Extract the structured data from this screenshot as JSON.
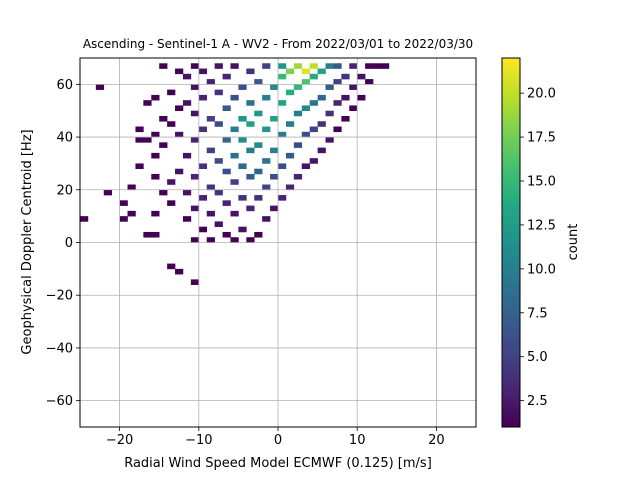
{
  "chart_data": {
    "type": "heatmap",
    "title": "Ascending - Sentinel-1 A - WV2 - From 2022/03/01 to 2022/03/30",
    "xlabel": "Radial Wind Speed Model ECMWF (0.125) [m/s]",
    "ylabel": "Geophysical Doppler Centroid [Hz]",
    "xlim": [
      -25,
      25
    ],
    "ylim": [
      -70,
      70
    ],
    "xticks": [
      -20,
      -10,
      0,
      10,
      20
    ],
    "xtick_labels": [
      "−20",
      "−10",
      "0",
      "10",
      "20"
    ],
    "yticks": [
      -60,
      -40,
      -20,
      0,
      20,
      40,
      60
    ],
    "ytick_labels": [
      "−60",
      "−40",
      "−20",
      "0",
      "20",
      "40",
      "60"
    ],
    "grid": true,
    "bin_width_x": 1.0,
    "bin_height_y": 2.0,
    "colorbar": {
      "label": "count",
      "range": [
        1,
        22
      ],
      "ticks": [
        2.5,
        5.0,
        7.5,
        10.0,
        12.5,
        15.0,
        17.5,
        20.0
      ],
      "tick_labels": [
        "2.5",
        "5.0",
        "7.5",
        "10.0",
        "12.5",
        "15.0",
        "17.5",
        "20.0"
      ],
      "colormap": "viridis"
    },
    "cells": [
      [
        -24.5,
        9,
        1
      ],
      [
        -22.5,
        59,
        1
      ],
      [
        -21.5,
        19,
        1
      ],
      [
        -19.5,
        15,
        1
      ],
      [
        -19.5,
        9,
        1
      ],
      [
        -18.5,
        11,
        1
      ],
      [
        -18.5,
        21,
        1
      ],
      [
        -17.5,
        29,
        1
      ],
      [
        -17.5,
        39,
        1
      ],
      [
        -17.5,
        43,
        1
      ],
      [
        -16.5,
        3,
        1
      ],
      [
        -16.5,
        39,
        1
      ],
      [
        -16.5,
        53,
        1
      ],
      [
        -15.5,
        3,
        1
      ],
      [
        -15.5,
        11,
        1
      ],
      [
        -15.5,
        25,
        1
      ],
      [
        -15.5,
        33,
        1
      ],
      [
        -15.5,
        41,
        1
      ],
      [
        -15.5,
        55,
        1
      ],
      [
        -14.5,
        19,
        1
      ],
      [
        -14.5,
        37,
        1
      ],
      [
        -14.5,
        47,
        1
      ],
      [
        -14.5,
        67,
        1
      ],
      [
        -13.5,
        -9,
        1
      ],
      [
        -13.5,
        15,
        1
      ],
      [
        -13.5,
        23,
        2
      ],
      [
        -13.5,
        45,
        1
      ],
      [
        -13.5,
        57,
        1
      ],
      [
        -12.5,
        -11,
        1
      ],
      [
        -12.5,
        27,
        2
      ],
      [
        -12.5,
        41,
        2
      ],
      [
        -12.5,
        51,
        1
      ],
      [
        -12.5,
        65,
        1
      ],
      [
        -11.5,
        9,
        1
      ],
      [
        -11.5,
        19,
        2
      ],
      [
        -11.5,
        33,
        2
      ],
      [
        -11.5,
        53,
        2
      ],
      [
        -11.5,
        63,
        2
      ],
      [
        -10.5,
        -15,
        1
      ],
      [
        -10.5,
        1,
        1
      ],
      [
        -10.5,
        13,
        2
      ],
      [
        -10.5,
        25,
        3
      ],
      [
        -10.5,
        39,
        3
      ],
      [
        -10.5,
        49,
        2
      ],
      [
        -10.5,
        59,
        2
      ],
      [
        -10.5,
        67,
        1
      ],
      [
        -9.5,
        5,
        1
      ],
      [
        -9.5,
        17,
        3
      ],
      [
        -9.5,
        29,
        4
      ],
      [
        -9.5,
        43,
        4
      ],
      [
        -9.5,
        55,
        3
      ],
      [
        -9.5,
        65,
        2
      ],
      [
        -8.5,
        1,
        1
      ],
      [
        -8.5,
        11,
        2
      ],
      [
        -8.5,
        21,
        4
      ],
      [
        -8.5,
        35,
        5
      ],
      [
        -8.5,
        47,
        5
      ],
      [
        -8.5,
        61,
        3
      ],
      [
        -7.5,
        7,
        2
      ],
      [
        -7.5,
        19,
        4
      ],
      [
        -7.5,
        31,
        6
      ],
      [
        -7.5,
        45,
        6
      ],
      [
        -7.5,
        57,
        4
      ],
      [
        -7.5,
        67,
        2
      ],
      [
        -6.5,
        3,
        1
      ],
      [
        -6.5,
        15,
        3
      ],
      [
        -6.5,
        27,
        6
      ],
      [
        -6.5,
        39,
        8
      ],
      [
        -6.5,
        51,
        7
      ],
      [
        -6.5,
        63,
        3
      ],
      [
        -5.5,
        1,
        1
      ],
      [
        -5.5,
        11,
        2
      ],
      [
        -5.5,
        23,
        5
      ],
      [
        -5.5,
        33,
        9
      ],
      [
        -5.5,
        43,
        10
      ],
      [
        -5.5,
        55,
        6
      ],
      [
        -5.5,
        67,
        2
      ],
      [
        -4.5,
        5,
        2
      ],
      [
        -4.5,
        17,
        4
      ],
      [
        -4.5,
        29,
        8
      ],
      [
        -4.5,
        39,
        11
      ],
      [
        -4.5,
        47,
        12
      ],
      [
        -4.5,
        59,
        6
      ],
      [
        -3.5,
        1,
        1
      ],
      [
        -3.5,
        13,
        3
      ],
      [
        -3.5,
        25,
        7
      ],
      [
        -3.5,
        35,
        10
      ],
      [
        -3.5,
        45,
        13
      ],
      [
        -3.5,
        53,
        9
      ],
      [
        -3.5,
        65,
        4
      ],
      [
        -2.5,
        3,
        1
      ],
      [
        -2.5,
        17,
        4
      ],
      [
        -2.5,
        27,
        8
      ],
      [
        -2.5,
        37,
        11
      ],
      [
        -2.5,
        49,
        12
      ],
      [
        -2.5,
        61,
        7
      ],
      [
        -1.5,
        9,
        2
      ],
      [
        -1.5,
        21,
        5
      ],
      [
        -1.5,
        31,
        9
      ],
      [
        -1.5,
        43,
        12
      ],
      [
        -1.5,
        55,
        10
      ],
      [
        -1.5,
        67,
        5
      ],
      [
        -0.5,
        13,
        2
      ],
      [
        -0.5,
        25,
        6
      ],
      [
        -0.5,
        35,
        10
      ],
      [
        -0.5,
        47,
        13
      ],
      [
        -0.5,
        59,
        11
      ],
      [
        0.5,
        17,
        3
      ],
      [
        0.5,
        29,
        6
      ],
      [
        0.5,
        41,
        10
      ],
      [
        0.5,
        53,
        13
      ],
      [
        0.5,
        63,
        15
      ],
      [
        0.5,
        67,
        12
      ],
      [
        1.5,
        21,
        3
      ],
      [
        1.5,
        33,
        7
      ],
      [
        1.5,
        45,
        10
      ],
      [
        1.5,
        57,
        14
      ],
      [
        1.5,
        65,
        18
      ],
      [
        2.5,
        25,
        3
      ],
      [
        2.5,
        37,
        6
      ],
      [
        2.5,
        49,
        10
      ],
      [
        2.5,
        59,
        15
      ],
      [
        2.5,
        67,
        19
      ],
      [
        3.5,
        29,
        2
      ],
      [
        3.5,
        41,
        6
      ],
      [
        3.5,
        51,
        11
      ],
      [
        3.5,
        61,
        16
      ],
      [
        3.5,
        65,
        21
      ],
      [
        4.5,
        31,
        2
      ],
      [
        4.5,
        43,
        5
      ],
      [
        4.5,
        53,
        9
      ],
      [
        4.5,
        63,
        14
      ],
      [
        4.5,
        67,
        20
      ],
      [
        5.5,
        35,
        2
      ],
      [
        5.5,
        45,
        4
      ],
      [
        5.5,
        55,
        8
      ],
      [
        5.5,
        65,
        13
      ],
      [
        6.5,
        39,
        2
      ],
      [
        6.5,
        49,
        4
      ],
      [
        6.5,
        59,
        7
      ],
      [
        6.5,
        67,
        10
      ],
      [
        7.5,
        43,
        1
      ],
      [
        7.5,
        53,
        3
      ],
      [
        7.5,
        61,
        5
      ],
      [
        7.5,
        67,
        7
      ],
      [
        8.5,
        47,
        1
      ],
      [
        8.5,
        55,
        2
      ],
      [
        8.5,
        63,
        4
      ],
      [
        9.5,
        51,
        1
      ],
      [
        9.5,
        59,
        2
      ],
      [
        9.5,
        67,
        3
      ],
      [
        10.5,
        55,
        1
      ],
      [
        10.5,
        63,
        2
      ],
      [
        11.5,
        61,
        1
      ],
      [
        11.5,
        67,
        1
      ],
      [
        12.5,
        67,
        1
      ],
      [
        13.5,
        67,
        1
      ]
    ]
  }
}
